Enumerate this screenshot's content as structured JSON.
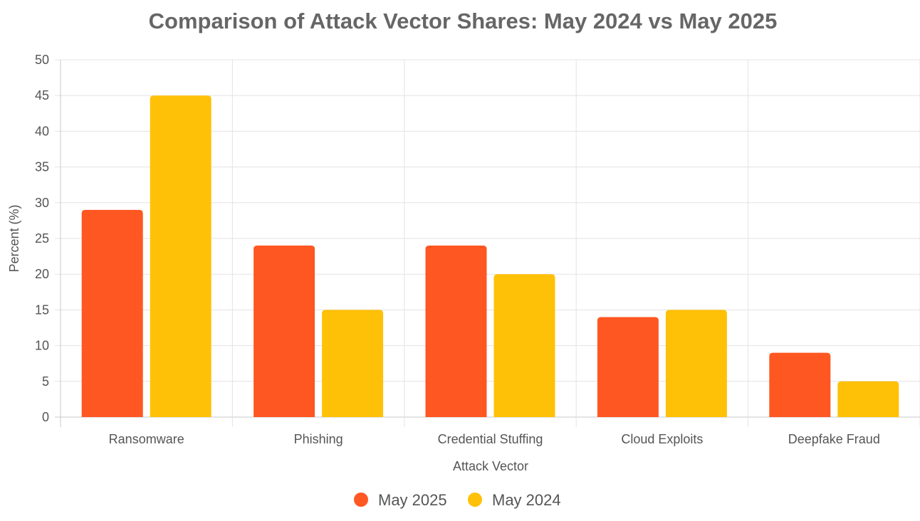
{
  "chart_data": {
    "type": "bar",
    "title": "Comparison of Attack Vector Shares: May 2024 vs May 2025",
    "xlabel": "Attack Vector",
    "ylabel": "Percent (%)",
    "categories": [
      "Ransomware",
      "Phishing",
      "Credential Stuffing",
      "Cloud Exploits",
      "Deepfake Fraud"
    ],
    "ylim": [
      0,
      50
    ],
    "yticks": [
      0,
      5,
      10,
      15,
      20,
      25,
      30,
      35,
      40,
      45,
      50
    ],
    "grid": true,
    "legend_position": "bottom",
    "series": [
      {
        "name": "May 2025",
        "color": "#FF5722",
        "values": [
          29,
          24,
          24,
          14,
          9
        ]
      },
      {
        "name": "May 2024",
        "color": "#FFC107",
        "values": [
          45,
          15,
          20,
          15,
          5
        ]
      }
    ]
  }
}
